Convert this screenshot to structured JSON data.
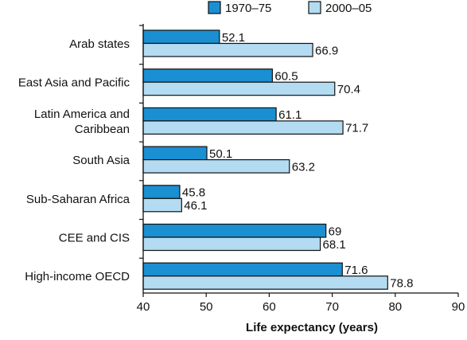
{
  "chart_data": {
    "type": "bar",
    "orientation": "horizontal",
    "title": "",
    "xlabel": "Life expectancy (years)",
    "ylabel": "",
    "xlim": [
      40,
      90
    ],
    "xticks": [
      40,
      50,
      60,
      70,
      80,
      90
    ],
    "grid": false,
    "legend_position": "top-right",
    "categories": [
      [
        "Arab states"
      ],
      [
        "East Asia and Pacific"
      ],
      [
        "Latin America and",
        "Caribbean"
      ],
      [
        "South Asia"
      ],
      [
        "Sub-Saharan Africa"
      ],
      [
        "CEE and CIS"
      ],
      [
        "High-income OECD"
      ]
    ],
    "series": [
      {
        "name": "1970–75",
        "color": "#1a8fd1",
        "values": [
          52.1,
          60.5,
          61.1,
          50.1,
          45.8,
          69,
          71.6
        ],
        "labels": [
          "52.1",
          "60.5",
          "61.1",
          "50.1",
          "45.8",
          "69",
          "71.6"
        ]
      },
      {
        "name": "2000–05",
        "color": "#b3dcf3",
        "values": [
          66.9,
          70.4,
          71.7,
          63.2,
          46.1,
          68.1,
          78.8
        ],
        "labels": [
          "66.9",
          "70.4",
          "71.7",
          "63.2",
          "46.1",
          "68.1",
          "78.8"
        ]
      }
    ]
  }
}
